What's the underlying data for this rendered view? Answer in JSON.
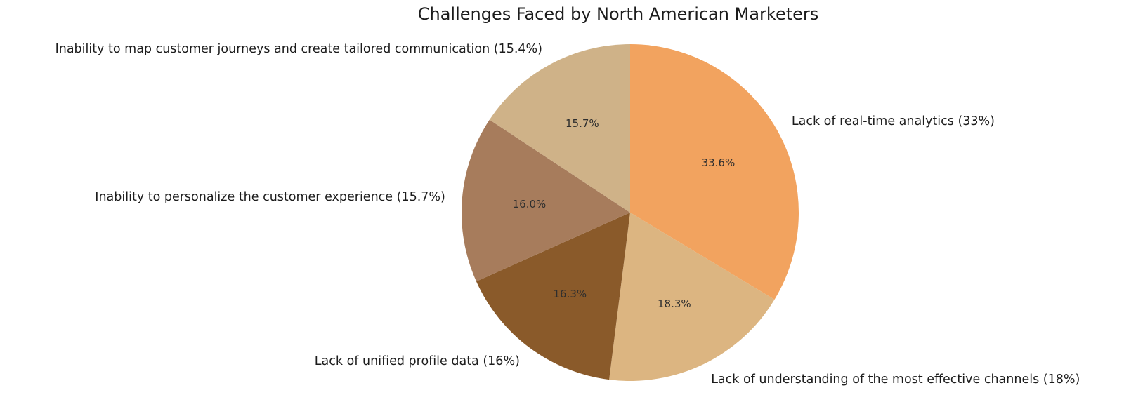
{
  "chart_data": {
    "type": "pie",
    "title": "Challenges Faced by North American Marketers",
    "start_angle": 90,
    "direction": "clockwise",
    "label_distance": 1.1,
    "pct_distance": 0.6,
    "background_color": "#ffffff",
    "text_color": "#1c1c1c",
    "slices": [
      {
        "label": "Lack of real-time analytics (33%)",
        "value": 33,
        "pct": "33.6%",
        "color": "#F2A35F"
      },
      {
        "label": "Lack of understanding of the most effective channels (18%)",
        "value": 18,
        "pct": "18.3%",
        "color": "#DCB581"
      },
      {
        "label": "Lack of unified profile data (16%)",
        "value": 16,
        "pct": "16.3%",
        "color": "#8A5A2A"
      },
      {
        "label": "Inability to personalize the customer experience (15.7%)",
        "value": 15.7,
        "pct": "16.0%",
        "color": "#A77C5C"
      },
      {
        "label": "Inability to map customer journeys and create tailored communication (15.4%)",
        "value": 15.4,
        "pct": "15.7%",
        "color": "#CFB288"
      }
    ]
  }
}
